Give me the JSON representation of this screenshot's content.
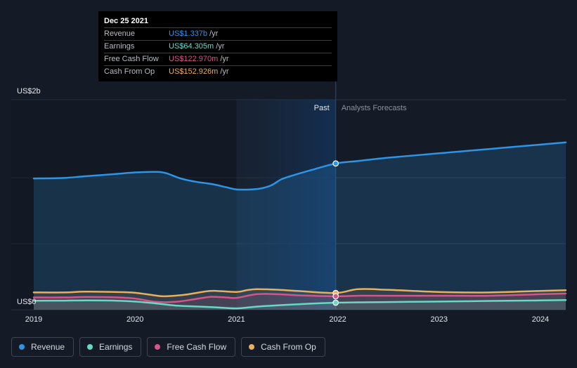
{
  "colors": {
    "background": "#151b26",
    "revenue": "#2d94e6",
    "earnings": "#66d9c7",
    "fcf": "#d6548a",
    "cfo": "#e8b05c"
  },
  "tooltip": {
    "date": "Dec 25 2021",
    "rows": [
      {
        "label": "Revenue",
        "value": "US$1.337b",
        "unit": "/yr",
        "color": "#2d94e6"
      },
      {
        "label": "Earnings",
        "value": "US$64.305m",
        "unit": "/yr",
        "color": "#66d9c7"
      },
      {
        "label": "Free Cash Flow",
        "value": "US$122.970m",
        "unit": "/yr",
        "color": "#d6548a"
      },
      {
        "label": "Cash From Op",
        "value": "US$152.926m",
        "unit": "/yr",
        "color": "#e8b05c"
      }
    ]
  },
  "legend": [
    {
      "label": "Revenue",
      "color": "#2d94e6"
    },
    {
      "label": "Earnings",
      "color": "#66d9c7"
    },
    {
      "label": "Free Cash Flow",
      "color": "#d6548a"
    },
    {
      "label": "Cash From Op",
      "color": "#e8b05c"
    }
  ],
  "chart_data": {
    "type": "area",
    "y_axis_labels": {
      "top": "US$2b",
      "bottom": "US$0"
    },
    "x_ticks": [
      "2019",
      "2020",
      "2021",
      "2022",
      "2023",
      "2024"
    ],
    "ylim": [
      0,
      1.92
    ],
    "xlim": [
      2019.0,
      2024.25
    ],
    "grid": true,
    "past_label": "Past",
    "forecast_label": "Analysts Forecasts",
    "highlight_range": [
      2021.0,
      2021.98
    ],
    "divider_x": 2021.98,
    "series": [
      {
        "name": "Revenue",
        "key": "revenue",
        "x": [
          2019.0,
          2019.3,
          2019.5,
          2019.8,
          2020.0,
          2020.2,
          2020.3,
          2020.45,
          2020.6,
          2020.75,
          2020.9,
          2021.0,
          2021.15,
          2021.25,
          2021.35,
          2021.45,
          2021.6,
          2021.75,
          2021.98,
          2022.2,
          2022.5,
          2023.0,
          2023.5,
          2024.0,
          2024.25
        ],
        "values": [
          1.2,
          1.205,
          1.22,
          1.24,
          1.255,
          1.26,
          1.25,
          1.2,
          1.17,
          1.15,
          1.12,
          1.1,
          1.1,
          1.11,
          1.14,
          1.195,
          1.24,
          1.28,
          1.337,
          1.36,
          1.39,
          1.43,
          1.47,
          1.51,
          1.53
        ]
      },
      {
        "name": "Cash From Op",
        "key": "cfo",
        "x": [
          2019.0,
          2019.3,
          2019.5,
          2019.8,
          2020.0,
          2020.2,
          2020.3,
          2020.5,
          2020.7,
          2020.8,
          2021.0,
          2021.1,
          2021.2,
          2021.4,
          2021.6,
          2021.98,
          2022.2,
          2022.5,
          2023.0,
          2023.5,
          2024.0,
          2024.25
        ],
        "values": [
          0.158,
          0.158,
          0.165,
          0.162,
          0.155,
          0.13,
          0.123,
          0.138,
          0.168,
          0.172,
          0.162,
          0.178,
          0.188,
          0.183,
          0.172,
          0.153,
          0.188,
          0.182,
          0.162,
          0.158,
          0.172,
          0.178
        ]
      },
      {
        "name": "Free Cash Flow",
        "key": "fcf",
        "x": [
          2019.0,
          2019.3,
          2019.5,
          2019.8,
          2020.0,
          2020.2,
          2020.4,
          2020.6,
          2020.75,
          2020.9,
          2021.0,
          2021.2,
          2021.4,
          2021.6,
          2021.98,
          2022.2,
          2022.5,
          2023.0,
          2023.5,
          2024.0,
          2024.25
        ],
        "values": [
          0.112,
          0.112,
          0.116,
          0.113,
          0.102,
          0.072,
          0.072,
          0.098,
          0.118,
          0.112,
          0.108,
          0.142,
          0.142,
          0.132,
          0.123,
          0.128,
          0.128,
          0.128,
          0.128,
          0.142,
          0.148
        ]
      },
      {
        "name": "Earnings",
        "key": "earnings",
        "x": [
          2019.0,
          2019.3,
          2019.5,
          2019.8,
          2020.0,
          2020.2,
          2020.4,
          2020.6,
          2020.8,
          2021.0,
          2021.2,
          2021.5,
          2021.98,
          2022.3,
          2022.7,
          2023.0,
          2023.5,
          2024.0,
          2024.25
        ],
        "values": [
          0.082,
          0.083,
          0.085,
          0.083,
          0.075,
          0.058,
          0.038,
          0.03,
          0.022,
          0.012,
          0.028,
          0.045,
          0.064,
          0.068,
          0.072,
          0.075,
          0.08,
          0.085,
          0.088
        ]
      }
    ],
    "markers": [
      {
        "key": "revenue",
        "x": 2021.98,
        "y": 1.337
      },
      {
        "key": "cfo",
        "x": 2021.98,
        "y": 0.153
      },
      {
        "key": "fcf",
        "x": 2021.98,
        "y": 0.123
      },
      {
        "key": "earnings",
        "x": 2021.98,
        "y": 0.064
      }
    ]
  }
}
